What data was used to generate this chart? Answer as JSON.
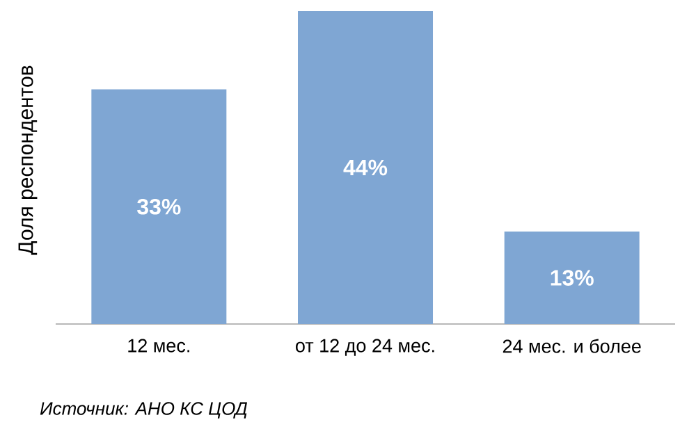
{
  "chart_data": {
    "type": "bar",
    "ylabel": "Доля респондентов",
    "categories": [
      "12 мес.",
      "от 12 до 24 мес.",
      "24 мес. и более"
    ],
    "values": [
      33,
      44,
      13
    ],
    "value_labels": [
      "33%",
      "44%",
      "13%"
    ],
    "color": "#7fa6d3",
    "grid": false,
    "annotations": [
      "*Источник: АНО КС ЦОД*"
    ]
  }
}
